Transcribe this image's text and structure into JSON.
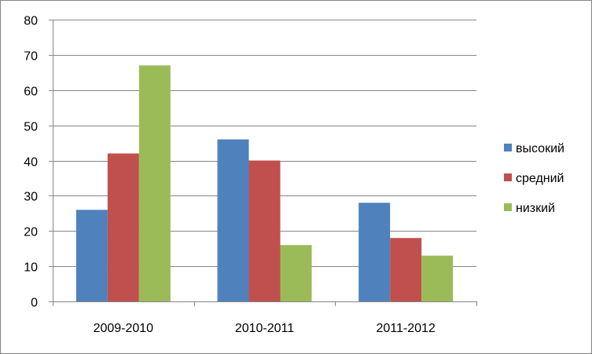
{
  "chart_data": {
    "type": "bar",
    "categories": [
      "2009-2010",
      "2010-2011",
      "2011-2012"
    ],
    "series": [
      {
        "name": "высокий",
        "values": [
          26,
          46,
          28
        ],
        "color": "#4f81bd"
      },
      {
        "name": "средний",
        "values": [
          42,
          40,
          18
        ],
        "color": "#c0504d"
      },
      {
        "name": "низкий",
        "values": [
          67,
          16,
          13
        ],
        "color": "#9bbb59"
      }
    ],
    "title": "",
    "xlabel": "",
    "ylabel": "",
    "ylim": [
      0,
      80
    ],
    "yticks": [
      0,
      10,
      20,
      30,
      40,
      50,
      60,
      70,
      80
    ],
    "grid": true,
    "legend": "right"
  }
}
